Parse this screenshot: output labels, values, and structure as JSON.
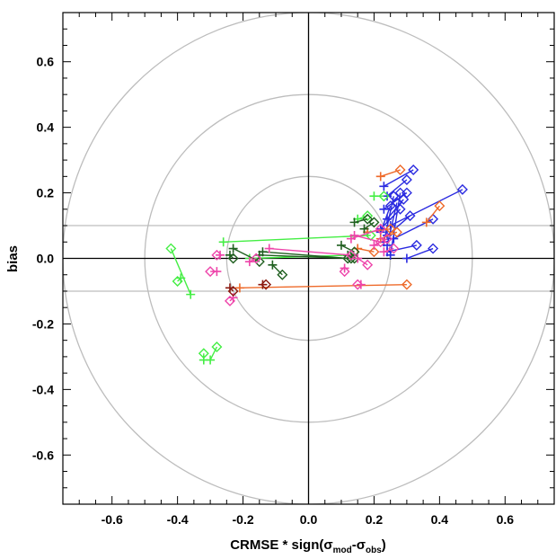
{
  "chart_data": {
    "type": "scatter",
    "title": "",
    "xlabel": {
      "main": "CRMSE * sign(",
      "sigma1": "σ",
      "sub1": "mod",
      "dash": "-",
      "sigma2": "σ",
      "sub2": "obs",
      "close": ")"
    },
    "ylabel": "bias",
    "xlim": [
      -0.75,
      0.75
    ],
    "ylim": [
      -0.75,
      0.75
    ],
    "xticks": [
      -0.6,
      -0.4,
      -0.2,
      0.0,
      0.2,
      0.4,
      0.6
    ],
    "yticks": [
      -0.6,
      -0.4,
      -0.2,
      0.0,
      0.2,
      0.4,
      0.6
    ],
    "xtick_labels": [
      "-0.6",
      "-0.4",
      "-0.2",
      "0.0",
      "0.2",
      "0.4",
      "0.6"
    ],
    "ytick_labels": [
      "-0.6",
      "-0.4",
      "-0.2",
      "0.0",
      "0.2",
      "0.4",
      "0.6"
    ],
    "circles": [
      0.25,
      0.5,
      0.75
    ],
    "hlines": [
      0.1,
      -0.1
    ],
    "grid": false,
    "colors": {
      "blue": "#2a2ae0",
      "orange": "#ee6a2a",
      "green": "#44ee44",
      "darkgreen": "#1f5f1f",
      "magenta": "#ee44aa",
      "darkred": "#8b1a10",
      "circle": "#bdbdbd",
      "axis": "#000000"
    },
    "series": [
      {
        "color": "blue",
        "pairs": [
          [
            [
              0.23,
              0.22
            ],
            [
              0.32,
              0.27
            ]
          ],
          [
            [
              0.24,
              0.19
            ],
            [
              0.3,
              0.24
            ]
          ],
          [
            [
              0.23,
              0.15
            ],
            [
              0.3,
              0.2
            ]
          ],
          [
            [
              0.24,
              0.12
            ],
            [
              0.29,
              0.18
            ]
          ],
          [
            [
              0.22,
              0.09
            ],
            [
              0.28,
              0.15
            ]
          ],
          [
            [
              0.24,
              0.07
            ],
            [
              0.31,
              0.13
            ]
          ],
          [
            [
              0.25,
              0.1
            ],
            [
              0.47,
              0.21
            ]
          ],
          [
            [
              0.24,
              0.02
            ],
            [
              0.33,
              0.04
            ]
          ],
          [
            [
              0.3,
              0.0
            ],
            [
              0.38,
              0.03
            ]
          ],
          [
            [
              0.26,
              0.06
            ],
            [
              0.38,
              0.12
            ]
          ],
          [
            [
              0.24,
              0.04
            ],
            [
              0.27,
              0.17
            ]
          ],
          [
            [
              0.25,
              0.01
            ],
            [
              0.28,
              0.2
            ]
          ],
          [
            [
              0.22,
              0.08
            ],
            [
              0.25,
              0.16
            ]
          ],
          [
            [
              0.23,
              0.05
            ],
            [
              0.26,
              0.19
            ]
          ]
        ]
      },
      {
        "color": "orange",
        "pairs": [
          [
            [
              0.22,
              0.25
            ],
            [
              0.28,
              0.27
            ]
          ],
          [
            [
              0.36,
              0.11
            ],
            [
              0.4,
              0.16
            ]
          ],
          [
            [
              -0.21,
              -0.09
            ],
            [
              0.3,
              -0.08
            ]
          ],
          [
            [
              0.18,
              0.08
            ],
            [
              0.25,
              0.09
            ]
          ],
          [
            [
              0.22,
              0.06
            ],
            [
              0.27,
              0.08
            ]
          ],
          [
            [
              0.15,
              0.03
            ],
            [
              0.2,
              0.02
            ]
          ]
        ]
      },
      {
        "color": "green",
        "pairs": [
          [
            [
              -0.26,
              0.05
            ],
            [
              0.19,
              0.07
            ]
          ],
          [
            [
              -0.36,
              -0.11
            ],
            [
              -0.42,
              0.03
            ]
          ],
          [
            [
              -0.3,
              -0.31
            ],
            [
              -0.28,
              -0.27
            ]
          ],
          [
            [
              -0.32,
              -0.31
            ],
            [
              -0.32,
              -0.29
            ]
          ],
          [
            [
              -0.39,
              -0.06
            ],
            [
              -0.4,
              -0.07
            ]
          ],
          [
            [
              0.2,
              0.19
            ],
            [
              0.23,
              0.19
            ]
          ],
          [
            [
              -0.18,
              0.0
            ],
            [
              0.13,
              0.01
            ]
          ],
          [
            [
              0.15,
              0.12
            ],
            [
              0.18,
              0.13
            ]
          ]
        ]
      },
      {
        "color": "darkgreen",
        "pairs": [
          [
            [
              -0.14,
              0.02
            ],
            [
              0.12,
              0.0
            ]
          ],
          [
            [
              -0.23,
              0.03
            ],
            [
              -0.15,
              -0.01
            ]
          ],
          [
            [
              -0.24,
              0.01
            ],
            [
              -0.23,
              0.0
            ]
          ],
          [
            [
              -0.15,
              0.01
            ],
            [
              0.13,
              0.0
            ]
          ],
          [
            [
              -0.11,
              -0.02
            ],
            [
              -0.08,
              -0.05
            ]
          ],
          [
            [
              0.14,
              0.11
            ],
            [
              0.18,
              0.12
            ]
          ],
          [
            [
              0.17,
              0.09
            ],
            [
              0.2,
              0.11
            ]
          ],
          [
            [
              0.1,
              0.04
            ],
            [
              0.14,
              0.02
            ]
          ],
          [
            [
              0.12,
              0.01
            ],
            [
              0.14,
              0.0
            ]
          ]
        ]
      },
      {
        "color": "magenta",
        "pairs": [
          [
            [
              -0.12,
              0.03
            ],
            [
              0.13,
              0.01
            ]
          ],
          [
            [
              0.14,
              0.07
            ],
            [
              0.22,
              0.05
            ]
          ],
          [
            [
              0.16,
              -0.08
            ],
            [
              0.15,
              -0.08
            ]
          ],
          [
            [
              -0.28,
              -0.04
            ],
            [
              -0.3,
              -0.04
            ]
          ],
          [
            [
              -0.23,
              -0.12
            ],
            [
              -0.24,
              -0.13
            ]
          ],
          [
            [
              -0.27,
              0.01
            ],
            [
              -0.28,
              0.01
            ]
          ],
          [
            [
              0.13,
              0.06
            ],
            [
              0.22,
              0.09
            ]
          ],
          [
            [
              0.11,
              -0.03
            ],
            [
              0.11,
              -0.04
            ]
          ],
          [
            [
              -0.18,
              -0.01
            ],
            [
              -0.16,
              0.0
            ]
          ],
          [
            [
              0.2,
              0.04
            ],
            [
              0.24,
              0.06
            ]
          ],
          [
            [
              0.23,
              0.02
            ],
            [
              0.26,
              0.03
            ]
          ],
          [
            [
              0.15,
              0.0
            ],
            [
              0.18,
              -0.02
            ]
          ]
        ]
      },
      {
        "color": "darkred",
        "pairs": [
          [
            [
              -0.24,
              -0.09
            ],
            [
              -0.23,
              -0.1
            ]
          ],
          [
            [
              -0.14,
              -0.08
            ],
            [
              -0.13,
              -0.08
            ]
          ]
        ]
      }
    ]
  }
}
